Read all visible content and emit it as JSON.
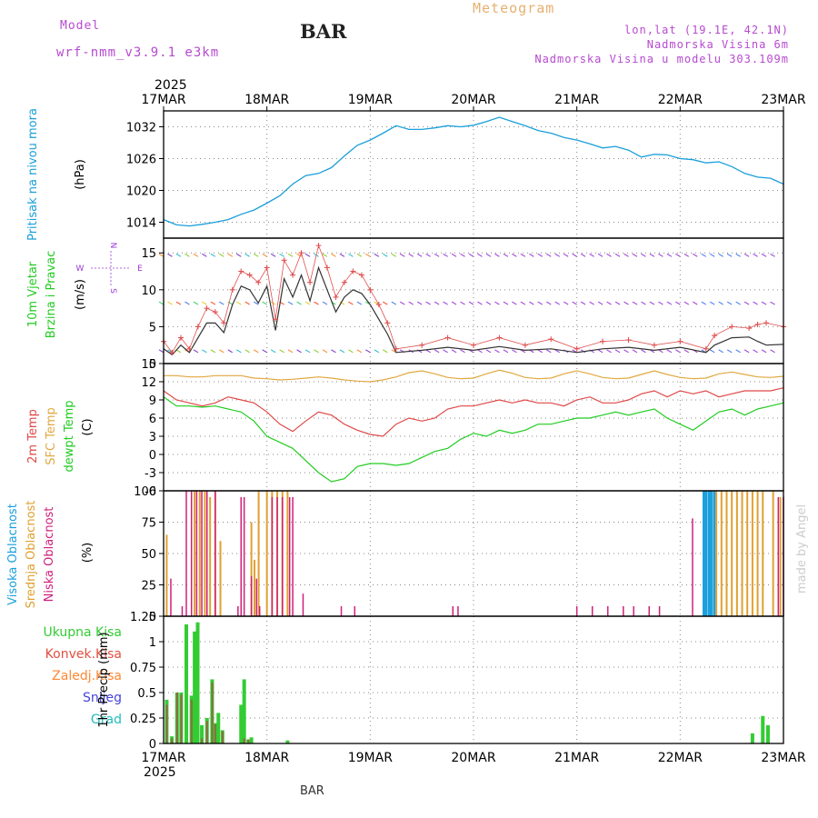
{
  "header": {
    "model_label": "Model",
    "model_name": "wrf-nmm_v3.9.1  e3km",
    "station": "BAR",
    "title": "Meteogram",
    "lonlat": "lon,lat (19.1E, 42.1N)",
    "elev": "Nadmorska Visina 6m",
    "elev_model": "Nadmorska Visina u modelu 303.109m"
  },
  "footer": {
    "station": "BAR",
    "credit": "made by Angel"
  },
  "colors": {
    "pressure": "#1a9fd9",
    "temp2m": "#e04848",
    "sfc": "#e0a840",
    "dewpt": "#22cc22",
    "low": "#d0207a",
    "mid": "#e0a030",
    "high": "#1aa0dd",
    "precip": "#33cc33",
    "conv": "#e05040",
    "frz": "#ff8833",
    "snow": "#4444dd",
    "grad": "#22bbbb",
    "wind_dir": "#9a3ad6",
    "wind_speed": "#333333",
    "gust": "#e05050"
  },
  "chart_data": [
    {
      "type": "line",
      "name": "pressure",
      "x_labels": [
        "17MAR",
        "18MAR",
        "19MAR",
        "20MAR",
        "21MAR",
        "22MAR",
        "23MAR"
      ],
      "year": "2025",
      "ylabel": "(hPa)",
      "side_label": "Pritisak na nivou mora",
      "ylim": [
        1011,
        1035
      ],
      "yticks": [
        1014,
        1020,
        1026,
        1032
      ],
      "x": [
        0,
        0.125,
        0.25,
        0.375,
        0.5,
        0.625,
        0.75,
        0.875,
        1,
        1.125,
        1.25,
        1.375,
        1.5,
        1.625,
        1.75,
        1.875,
        2,
        2.125,
        2.25,
        2.375,
        2.5,
        2.625,
        2.75,
        2.875,
        3,
        3.125,
        3.25,
        3.375,
        3.5,
        3.625,
        3.75,
        3.875,
        4,
        4.125,
        4.25,
        4.375,
        4.5,
        4.625,
        4.75,
        4.875,
        5,
        5.125,
        5.25,
        5.375,
        5.5,
        5.625,
        5.75,
        5.875,
        6
      ],
      "values": [
        1014.5,
        1013.5,
        1013.3,
        1013.6,
        1014,
        1014.5,
        1015.5,
        1016.3,
        1017.6,
        1019,
        1021.2,
        1022.8,
        1023.2,
        1024.3,
        1026.5,
        1028.5,
        1029.5,
        1030.8,
        1032.2,
        1031.5,
        1031.5,
        1031.8,
        1032.2,
        1032,
        1032.3,
        1033,
        1033.8,
        1033,
        1032.2,
        1031.3,
        1030.8,
        1030,
        1029.5,
        1028.8,
        1028,
        1028.3,
        1027.6,
        1026.3,
        1026.8,
        1026.7,
        1026,
        1025.8,
        1025.2,
        1025.4,
        1024.5,
        1023.2,
        1022.5,
        1022.3,
        1021.2
      ]
    },
    {
      "type": "line",
      "name": "wind",
      "ylabel": "(m/s)",
      "side_label": [
        "10m Vjetar",
        "Brzina i Pravac"
      ],
      "compass": {
        "n": "N",
        "s": "S",
        "e": "E",
        "w": "W"
      },
      "ylim": [
        0,
        17
      ],
      "yticks": [
        0,
        5,
        10,
        15
      ],
      "barb_levels": [
        1.5,
        8,
        14.5
      ],
      "x": [
        0,
        0.083,
        0.167,
        0.25,
        0.333,
        0.417,
        0.5,
        0.583,
        0.667,
        0.75,
        0.833,
        0.917,
        1,
        1.083,
        1.167,
        1.25,
        1.333,
        1.417,
        1.5,
        1.583,
        1.667,
        1.75,
        1.833,
        1.917,
        2,
        2.083,
        2.167,
        2.25,
        2.5,
        2.75,
        3,
        3.25,
        3.5,
        3.75,
        4,
        4.25,
        4.5,
        4.75,
        5,
        5.25,
        5.333,
        5.5,
        5.667,
        5.75,
        5.833,
        6
      ],
      "speed": [
        2,
        1.2,
        2.5,
        1.5,
        3.5,
        5.5,
        5.5,
        4.2,
        8,
        10.5,
        10,
        8.2,
        10.5,
        4.5,
        11.5,
        9,
        12,
        8.5,
        13,
        10,
        7,
        9,
        10,
        9.5,
        8,
        6,
        4,
        1.5,
        1.8,
        2.2,
        1.8,
        2.3,
        1.8,
        2,
        1.5,
        2,
        2.2,
        1.8,
        2.2,
        1.5,
        2.5,
        3.5,
        3.6,
        3,
        2.5,
        2.6
      ],
      "gust": [
        3,
        1.5,
        3.5,
        2,
        5,
        7.5,
        7,
        5.5,
        10,
        12.5,
        12,
        11,
        13,
        6,
        14,
        12,
        15,
        11,
        16,
        13,
        9,
        11,
        12.5,
        12,
        10,
        8,
        5.5,
        2,
        2.5,
        3.5,
        2.5,
        3.5,
        2.5,
        3.3,
        2,
        3,
        3.2,
        2.5,
        3,
        2,
        3.8,
        5,
        4.8,
        5.3,
        5.5,
        5
      ]
    },
    {
      "type": "line",
      "name": "temperature",
      "ylabel": "(C)",
      "side_label": [
        "2m Temp",
        "SFC Temp",
        "dewpt Temp"
      ],
      "ylim": [
        -6,
        15
      ],
      "yticks": [
        -6,
        -3,
        0,
        3,
        6,
        9,
        12,
        15
      ],
      "x": [
        0,
        0.125,
        0.25,
        0.375,
        0.5,
        0.625,
        0.75,
        0.875,
        1,
        1.125,
        1.25,
        1.375,
        1.5,
        1.625,
        1.75,
        1.875,
        2,
        2.125,
        2.25,
        2.375,
        2.5,
        2.625,
        2.75,
        2.875,
        3,
        3.125,
        3.25,
        3.375,
        3.5,
        3.625,
        3.75,
        3.875,
        4,
        4.125,
        4.25,
        4.375,
        4.5,
        4.625,
        4.75,
        4.875,
        5,
        5.125,
        5.25,
        5.375,
        5.5,
        5.625,
        5.75,
        5.875,
        6
      ],
      "temp2m": [
        10.5,
        9,
        8.5,
        8,
        8.5,
        9.5,
        9,
        8.5,
        7,
        5,
        3.8,
        5.5,
        7,
        6.5,
        5,
        4,
        3.3,
        3,
        5,
        6,
        5.5,
        6,
        7.5,
        8,
        8,
        8.5,
        9,
        8.5,
        9,
        8.5,
        8.5,
        8,
        9,
        9.5,
        8.5,
        8.5,
        9,
        10,
        10.5,
        9.5,
        10.5,
        10,
        10.5,
        9.5,
        10,
        10.5,
        10.5,
        10.5,
        11
      ],
      "sfc": [
        13,
        13,
        12.8,
        12.8,
        13,
        13,
        13,
        12.6,
        12.5,
        12.3,
        12.4,
        12.6,
        12.8,
        12.6,
        12.3,
        12.1,
        12,
        12.3,
        12.8,
        13.5,
        13.8,
        13.3,
        12.7,
        12.5,
        12.6,
        13.3,
        13.9,
        13.4,
        12.7,
        12.5,
        12.6,
        13.3,
        13.8,
        13.3,
        12.7,
        12.5,
        12.6,
        13.2,
        13.8,
        13.2,
        12.7,
        12.5,
        12.6,
        13.3,
        13.6,
        13.2,
        12.8,
        12.7,
        12.9
      ],
      "dewpt": [
        9.5,
        8,
        8,
        7.8,
        8,
        7.5,
        7,
        5.5,
        3,
        2,
        1,
        -1,
        -3,
        -4.5,
        -4,
        -2,
        -1.5,
        -1.5,
        -1.8,
        -1.5,
        -0.5,
        0.5,
        1,
        2.5,
        3.5,
        3,
        4,
        3.5,
        4,
        5,
        5,
        5.5,
        6,
        6,
        6.5,
        7,
        6.5,
        7,
        7.5,
        6,
        5,
        4,
        5.5,
        7,
        7.5,
        6.5,
        7.5,
        8,
        8.5
      ]
    },
    {
      "type": "bar",
      "name": "cloud",
      "ylabel": "(%)",
      "side_label": [
        "Visoka Oblacnost",
        "Srednja Oblacnost",
        "Niska Oblacnost"
      ],
      "ylim": [
        0,
        100
      ],
      "yticks": [
        0,
        25,
        50,
        75,
        100
      ],
      "low": {
        "x": [
          0.07,
          0.18,
          0.22,
          0.27,
          0.32,
          0.37,
          0.42,
          0.5,
          0.72,
          0.75,
          0.78,
          0.85,
          0.9,
          0.93,
          1.05,
          1.1,
          1.15,
          1.22,
          1.25,
          1.35,
          1.72,
          1.85,
          2.8,
          2.85,
          4.0,
          4.15,
          4.3,
          4.45,
          4.55,
          4.7,
          4.8,
          5.12,
          5.95,
          6.0
        ],
        "values": [
          30,
          8,
          100,
          100,
          100,
          100,
          100,
          100,
          8,
          95,
          95,
          32,
          30,
          8,
          95,
          95,
          95,
          95,
          95,
          18,
          8,
          8,
          8,
          8,
          8,
          8,
          8,
          8,
          8,
          8,
          8,
          78,
          95,
          95
        ]
      },
      "mid": {
        "x": [
          0.03,
          0.3,
          0.35,
          0.4,
          0.45,
          0.5,
          0.55,
          0.85,
          0.88,
          0.92,
          1.0,
          1.05,
          1.1,
          1.15,
          1.2,
          5.35,
          5.4,
          5.45,
          5.5,
          5.55,
          5.6,
          5.65,
          5.7,
          5.75,
          5.8,
          5.9,
          5.97
        ],
        "values": [
          65,
          100,
          100,
          100,
          95,
          100,
          60,
          75,
          45,
          100,
          100,
          100,
          100,
          100,
          100,
          100,
          100,
          100,
          100,
          100,
          100,
          100,
          100,
          100,
          100,
          100,
          95
        ]
      },
      "high": {
        "x": [
          5.23,
          5.25,
          5.28,
          5.3,
          5.33
        ],
        "values": [
          100,
          100,
          100,
          100,
          100
        ]
      }
    },
    {
      "type": "bar",
      "name": "precip",
      "ylabel": "1hr Precip (mm)",
      "legend": [
        "Ukupna Kisa",
        "Konvek.Kisa",
        "Zaledj.Kisa",
        "Snijeg",
        "Grad"
      ],
      "ylim": [
        0,
        1.25
      ],
      "yticks": [
        0,
        0.25,
        0.5,
        0.75,
        1,
        1.25
      ],
      "x": [
        0.03,
        0.08,
        0.13,
        0.17,
        0.22,
        0.27,
        0.3,
        0.33,
        0.37,
        0.42,
        0.47,
        0.5,
        0.53,
        0.57,
        0.75,
        0.78,
        0.82,
        0.85,
        1.2,
        5.7,
        5.8,
        5.85
      ],
      "total": [
        0.43,
        0.07,
        0.5,
        0.5,
        1.17,
        0.47,
        1.1,
        1.19,
        0.18,
        0.25,
        0.63,
        0.2,
        0.3,
        0.13,
        0.38,
        0.63,
        0.04,
        0.06,
        0.03,
        0.1,
        0.27,
        0.18
      ],
      "conv": [
        0.38,
        0.05,
        0.5,
        0.48,
        0,
        0.43,
        0,
        0,
        0.05,
        0.22,
        0.6,
        0.19,
        0,
        0.12,
        0,
        0.05,
        0.04,
        0,
        0,
        0,
        0,
        0
      ]
    }
  ]
}
